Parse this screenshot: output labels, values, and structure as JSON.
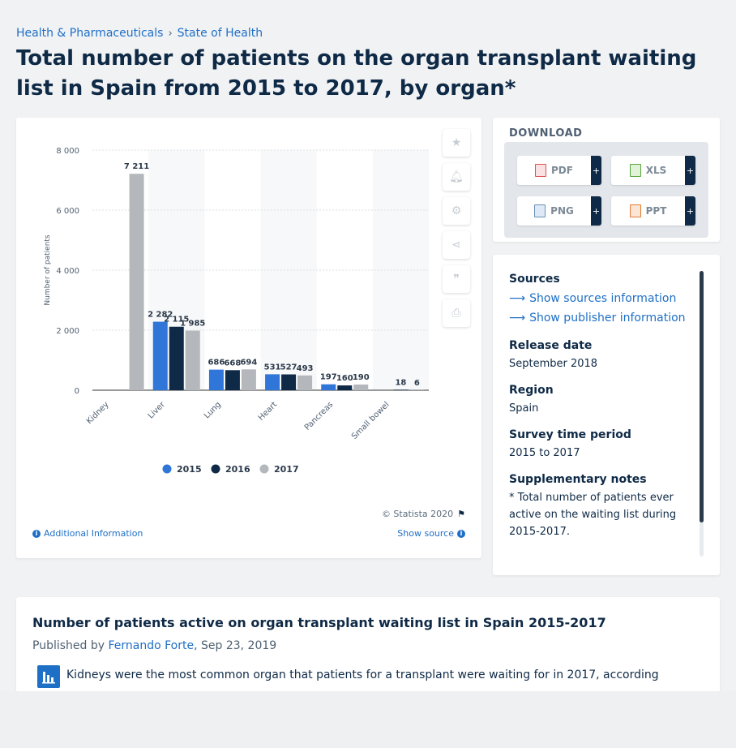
{
  "breadcrumb": {
    "item1": "Health & Pharmaceuticals",
    "sep": "›",
    "item2": "State of Health"
  },
  "page_title": "Total number of patients on the organ transplant waiting list in Spain from 2015 to 2017, by organ*",
  "chart_data": {
    "type": "bar",
    "categories": [
      "Kidney",
      "Liver",
      "Lung",
      "Heart",
      "Pancreas",
      "Small bowel"
    ],
    "series": [
      {
        "name": "2015",
        "values": [
          null,
          2282,
          686,
          531,
          197,
          null
        ],
        "labels": [
          "",
          "2 282",
          "686",
          "531",
          "197",
          ""
        ]
      },
      {
        "name": "2016",
        "values": [
          null,
          2115,
          668,
          527,
          160,
          18
        ],
        "labels": [
          "",
          "2 115",
          "668",
          "527",
          "160",
          "18"
        ]
      },
      {
        "name": "2017",
        "values": [
          7211,
          1985,
          694,
          493,
          190,
          6
        ],
        "labels": [
          "7 211",
          "1 985",
          "694",
          "493",
          "190",
          "6"
        ]
      }
    ],
    "ylabel": "Number of patients",
    "ylim": [
      0,
      8000
    ],
    "yticks": [
      0,
      2000,
      4000,
      6000,
      8000
    ],
    "ytick_labels": [
      "0",
      "2 000",
      "4 000",
      "6 000",
      "8 000"
    ],
    "colors": [
      "#2f76d8",
      "#0f2a46",
      "#b4b8bd"
    ],
    "legend_position": "bottom",
    "grid": true
  },
  "chart_footer": {
    "copyright": "© Statista 2020",
    "additional_info": "Additional Information",
    "show_source": "Show source"
  },
  "download": {
    "heading": "DOWNLOAD",
    "buttons": [
      {
        "label": "PDF",
        "plus": "+"
      },
      {
        "label": "XLS",
        "plus": "+"
      },
      {
        "label": "PNG",
        "plus": "+"
      },
      {
        "label": "PPT",
        "plus": "+"
      }
    ]
  },
  "info": {
    "sources_heading": "Sources",
    "show_sources": "Show sources information",
    "show_publisher": "Show publisher information",
    "release_heading": "Release date",
    "release_value": "September 2018",
    "region_heading": "Region",
    "region_value": "Spain",
    "survey_heading": "Survey time period",
    "survey_value": "2015 to 2017",
    "notes_heading": "Supplementary notes",
    "notes_value": "* Total number of patients ever active on the waiting list during 2015-2017."
  },
  "article": {
    "title": "Number of patients active on organ transplant waiting list in Spain 2015-2017",
    "published_by": "Published by",
    "author": "Fernando Forte",
    "date": ", Sep 23, 2019",
    "text": "Kidneys were the most common organ that patients for a transplant were waiting for in 2017, according"
  }
}
